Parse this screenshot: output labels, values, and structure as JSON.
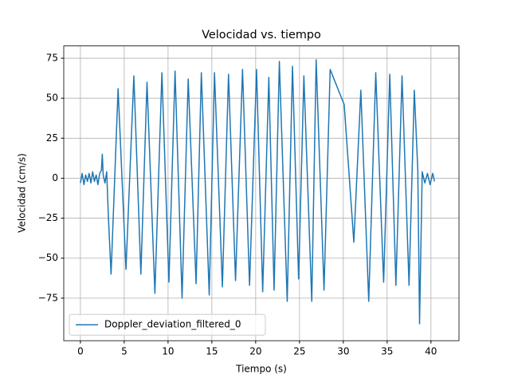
{
  "chart_data": {
    "type": "line",
    "title": "Velocidad vs. tiempo",
    "xlabel": "Tiempo (s)",
    "ylabel": "Velocidad (cm/s)",
    "x": [
      0,
      0.2,
      0.4,
      0.6,
      0.8,
      1.0,
      1.2,
      1.4,
      1.6,
      1.8,
      2.0,
      2.2,
      2.4,
      2.5,
      2.6,
      2.8,
      3.0,
      3.2,
      3.5,
      4.3,
      5.2,
      6.1,
      6.9,
      7.6,
      8.5,
      9.3,
      10.1,
      10.8,
      11.6,
      12.3,
      13.2,
      13.8,
      14.7,
      15.3,
      16.2,
      16.9,
      17.7,
      18.5,
      19.3,
      20.1,
      20.8,
      21.5,
      22.1,
      22.7,
      23.6,
      24.2,
      24.9,
      25.5,
      26.4,
      26.9,
      27.8,
      28.5,
      30.1,
      31.2,
      32.0,
      32.9,
      33.7,
      34.6,
      35.3,
      36.0,
      36.7,
      37.5,
      38.1,
      38.5,
      38.7,
      39.0,
      39.3,
      39.6,
      39.9,
      40.2,
      40.4
    ],
    "series": [
      {
        "name": "Doppler_deviation_filtered_0",
        "color": "#1f77b4",
        "values": [
          -3,
          3,
          -4,
          2,
          -2,
          3,
          -3,
          4,
          -2,
          2,
          -4,
          3,
          5,
          15,
          2,
          -3,
          4,
          -25,
          -60,
          56,
          -57,
          64,
          -60,
          60,
          -72,
          66,
          -65,
          67,
          -75,
          62,
          -66,
          66,
          -73,
          66,
          -68,
          65,
          -64,
          68,
          -67,
          68,
          -71,
          63,
          -70,
          73,
          -77,
          70,
          -63,
          64,
          -77,
          74,
          -70,
          68,
          46,
          -40,
          55,
          -77,
          66,
          -65,
          65,
          -67,
          64,
          -67,
          55,
          5,
          -91,
          4,
          -3,
          3,
          -4,
          3,
          -2
        ]
      }
    ],
    "xlim": [
      -1.9,
      43.2
    ],
    "ylim": [
      -101.6,
      82.7
    ],
    "xticks": [
      0,
      5,
      10,
      15,
      20,
      25,
      30,
      35,
      40
    ],
    "yticks": [
      {
        "value": -75,
        "label": "−75"
      },
      {
        "value": -50,
        "label": "−50"
      },
      {
        "value": -25,
        "label": "−25"
      },
      0,
      25,
      50,
      75
    ],
    "grid": true,
    "legend": "lower left"
  }
}
